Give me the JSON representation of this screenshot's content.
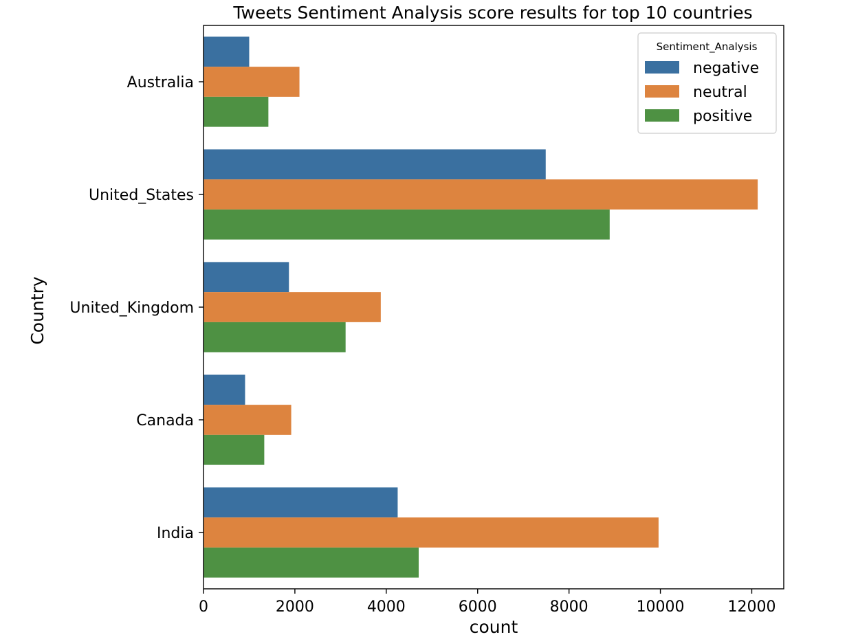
{
  "chart_data": {
    "type": "bar",
    "orientation": "horizontal",
    "title": "Tweets Sentiment Analysis score results for top 10 countries",
    "xlabel": "count",
    "ylabel": "Country",
    "categories": [
      "Australia",
      "United_States",
      "United_Kingdom",
      "Canada",
      "India"
    ],
    "series": [
      {
        "name": "negative",
        "color": "#3a70a0",
        "values": [
          1000,
          7490,
          1870,
          910,
          4250
        ]
      },
      {
        "name": "neutral",
        "color": "#dd843f",
        "values": [
          2100,
          12130,
          3880,
          1920,
          9960
        ]
      },
      {
        "name": "positive",
        "color": "#4e9143",
        "values": [
          1420,
          8890,
          3110,
          1330,
          4710
        ]
      }
    ],
    "xlim": [
      0,
      12700
    ],
    "xticks": [
      0,
      2000,
      4000,
      6000,
      8000,
      10000,
      12000
    ],
    "grid": false,
    "legend": {
      "title": "Sentiment_Analysis",
      "placement": "top-right"
    }
  }
}
